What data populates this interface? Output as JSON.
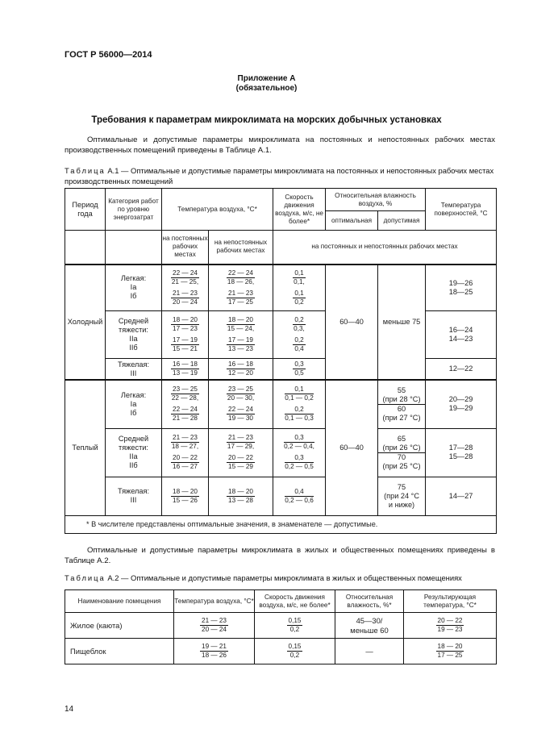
{
  "header": "ГОСТ Р 56000—2014",
  "appendix": {
    "title": "Приложение А",
    "status": "(обязательное)"
  },
  "section_title": "Требования к параметрам микроклимата на морских добычных установках",
  "para1": "Оптимальные и допустимые параметры микроклимата на постоянных и непостоянных рабочих местах производственных помещений приведены в Таблице А.1.",
  "table1": {
    "caption_label": "Таблица",
    "caption_text": "А.1 — Оптимальные и допустимые параметры микроклимата на постоянных и непостоянных рабочих местах производственных помещений",
    "headers": {
      "period": "Период года",
      "category": "Категория работ по уровню энергозатрат",
      "air_temp": "Температура воздуха, °С*",
      "air_temp_const": "на постоянных рабочих местах",
      "air_temp_nonconst": "на непостоянных рабочих местах",
      "speed": "Скорость движения воздуха, м/с, не более*",
      "humidity": "Относительная влажность воздуха, %",
      "humidity_opt": "оптимальная",
      "humidity_adm": "допустимая",
      "surface": "Температура поверхностей, °С",
      "all_places": "на постоянных и непостоянных рабочих местах"
    },
    "periods": [
      {
        "period": "Холодный",
        "humidity_opt": "60—40",
        "humidity_adm": "меньше 75",
        "groups": [
          {
            "category": [
              "Легкая:",
              "Ia",
              "Iб"
            ],
            "temp_const": [
              [
                "22 — 24",
                "21 — 25,"
              ],
              [
                "21 — 23",
                "20 — 24"
              ]
            ],
            "temp_nonconst": [
              [
                "22 — 24",
                "18 — 26,"
              ],
              [
                "21 — 23",
                "17 — 25"
              ]
            ],
            "speed": [
              [
                "0,1",
                "0,1,"
              ],
              [
                "0,1",
                "0,2"
              ]
            ],
            "surface": [
              "19—26",
              "18—25"
            ]
          },
          {
            "category": [
              "Средней",
              "тяжести:",
              "IIa",
              "IIб"
            ],
            "temp_const": [
              [
                "18 — 20",
                "17 — 23"
              ],
              [
                "17 — 19",
                "15 — 21"
              ]
            ],
            "temp_nonconst": [
              [
                "18 — 20",
                "15 — 24,"
              ],
              [
                "17 — 19",
                "13 — 23"
              ]
            ],
            "speed": [
              [
                "0,2",
                "0,3,"
              ],
              [
                "0,2",
                "0,4"
              ]
            ],
            "surface": [
              "16—24",
              "14—23"
            ]
          },
          {
            "category": [
              "Тяжелая:",
              "III"
            ],
            "temp_const": [
              [
                "16 — 18",
                "13 — 19"
              ]
            ],
            "temp_nonconst": [
              [
                "16 — 18",
                "12 — 20"
              ]
            ],
            "speed": [
              [
                "0,3",
                "0,5"
              ]
            ],
            "surface": [
              "12—22"
            ]
          }
        ]
      },
      {
        "period": "Теплый",
        "humidity_opt": "60—40",
        "groups": [
          {
            "category": [
              "Легкая:",
              "Ia",
              "Iб"
            ],
            "temp_const": [
              [
                "23 — 25",
                "22 — 28,"
              ],
              [
                "22 — 24",
                "21 — 28"
              ]
            ],
            "temp_nonconst": [
              [
                "23 — 25",
                "20 — 30,"
              ],
              [
                "22 — 24",
                "19 — 30"
              ]
            ],
            "speed": [
              [
                "0,1",
                "0,1 — 0,2"
              ],
              [
                "0,2",
                "0,1 — 0,3"
              ]
            ],
            "humidity_adm": [
              [
                "55",
                "(при 28 °С)"
              ],
              [
                "60",
                "(при 27 °С)"
              ]
            ],
            "surface": [
              "20—29",
              "19—29"
            ]
          },
          {
            "category": [
              "Средней",
              "тяжести:",
              "IIa",
              "IIб"
            ],
            "temp_const": [
              [
                "21 — 23",
                "18 — 27,"
              ],
              [
                "20 — 22",
                "16 — 27"
              ]
            ],
            "temp_nonconst": [
              [
                "21 — 23",
                "17 — 29,"
              ],
              [
                "20 — 22",
                "15 — 29"
              ]
            ],
            "speed": [
              [
                "0,3",
                "0,2 — 0,4,"
              ],
              [
                "0,3",
                "0,2 — 0,5"
              ]
            ],
            "humidity_adm": [
              [
                "65",
                "(при 26 °С)"
              ],
              [
                "70",
                "(при 25 °С)"
              ]
            ],
            "surface": [
              "17—28",
              "15—28"
            ]
          },
          {
            "category": [
              "Тяжелая:",
              "III"
            ],
            "temp_const": [
              [
                "18 — 20",
                "15 — 26"
              ]
            ],
            "temp_nonconst": [
              [
                "18 — 20",
                "13 — 28"
              ]
            ],
            "speed": [
              [
                "0,4",
                "0,2 — 0,6"
              ]
            ],
            "humidity_adm": [
              [
                "75",
                "(при 24 °С",
                "и ниже)"
              ]
            ],
            "surface": [
              "14—27"
            ]
          }
        ]
      }
    ],
    "footnote": "* В числителе представлены оптимальные значения, в знаменателе — допустимые."
  },
  "para2": "Оптимальные и допустимые параметры микроклимата в жилых и общественных помещениях приведены в Таблице А.2.",
  "table2": {
    "caption_label": "Таблица",
    "caption_text": "А.2 — Оптимальные и допустимые параметры микроклимата в жилых и общественных помещениях",
    "headers": [
      "Наименование помещения",
      "Температура воздуха, °С*",
      "Скорость движения воздуха, м/с, не более*",
      "Относительная влажность, %*",
      "Результирующая температура, °С*"
    ],
    "rows": [
      {
        "name": "Жилое (каюта)",
        "temp": [
          "21 — 23",
          "20 — 24"
        ],
        "speed": [
          "0,15",
          "0,2"
        ],
        "humidity": [
          "45—30/",
          "меньше 60"
        ],
        "result": [
          "20 — 22",
          "19 — 23"
        ]
      },
      {
        "name": "Пищеблок",
        "temp": [
          "19 — 21",
          "18 — 26"
        ],
        "speed": [
          "0,15",
          "0,2"
        ],
        "humidity": [
          "—"
        ],
        "result": [
          "18 — 20",
          "17 — 25"
        ]
      }
    ]
  },
  "page_number": "14"
}
